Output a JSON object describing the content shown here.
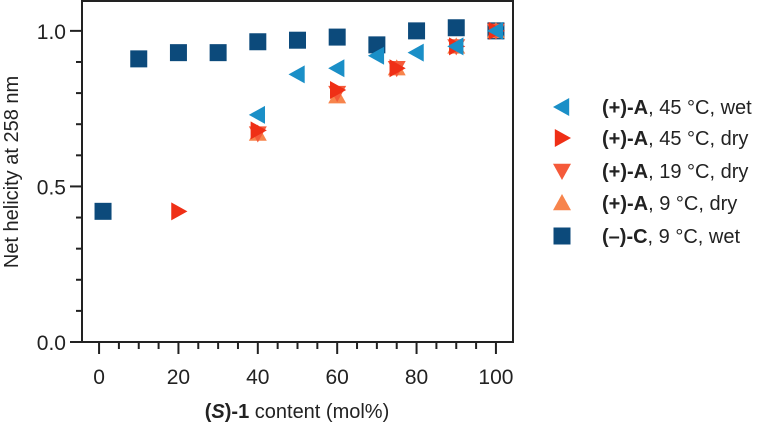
{
  "chart_data": {
    "type": "scatter",
    "title": "",
    "xlabel": {
      "prefix_bold": "(",
      "italic_bold": "S",
      "suffix_bold": ")-1",
      "rest": " content (mol%)"
    },
    "ylabel": "Net helicity at 258 nm",
    "xlim": [
      -4.3,
      104.3
    ],
    "ylim": [
      0.0,
      1.096
    ],
    "xticks": [
      0,
      20,
      40,
      60,
      80,
      100
    ],
    "xtick_labels": [
      "0",
      "20",
      "40",
      "60",
      "80",
      "100"
    ],
    "x_minor_step": 5,
    "yticks": [
      0.0,
      0.5,
      1.0
    ],
    "ytick_labels": [
      "0.0",
      "0.5",
      "1.0"
    ],
    "y_minor_step": 0.1,
    "grid": false,
    "legend_position": "right",
    "series": [
      {
        "name_bold": "(+)-A",
        "name_rest": ", 45 °C, wet",
        "marker": "triangle-left",
        "color": "#1a8fc7",
        "x": [
          40,
          50,
          60,
          70,
          80,
          90,
          100
        ],
        "y": [
          0.73,
          0.86,
          0.88,
          0.92,
          0.93,
          0.95,
          1.0
        ]
      },
      {
        "name_bold": "(+)-A",
        "name_rest": ", 45 °C, dry",
        "marker": "triangle-right",
        "color": "#ef2f16",
        "x": [
          20,
          40,
          60,
          75,
          90,
          100
        ],
        "y": [
          0.42,
          0.68,
          0.81,
          0.88,
          0.95,
          1.0
        ]
      },
      {
        "name_bold": "(+)-A",
        "name_rest": ", 19 °C, dry",
        "marker": "triangle-down",
        "color": "#f55a3a",
        "x": [
          40,
          60,
          75,
          90,
          100
        ],
        "y": [
          0.67,
          0.8,
          0.88,
          0.95,
          1.0
        ]
      },
      {
        "name_bold": "(+)-A",
        "name_rest": ", 9 °C, dry",
        "marker": "triangle-up",
        "color": "#f7844c",
        "x": [
          40,
          60,
          75,
          90,
          100
        ],
        "y": [
          0.67,
          0.79,
          0.88,
          0.95,
          1.0
        ]
      },
      {
        "name_bold": "(–)-C",
        "name_rest": ", 9 °C, wet",
        "marker": "square",
        "color": "#0c4a7b",
        "x": [
          1,
          10,
          20,
          30,
          40,
          50,
          60,
          70,
          80,
          90,
          100
        ],
        "y": [
          0.42,
          0.91,
          0.93,
          0.93,
          0.965,
          0.97,
          0.98,
          0.955,
          1.0,
          1.01,
          1.0
        ]
      }
    ]
  }
}
